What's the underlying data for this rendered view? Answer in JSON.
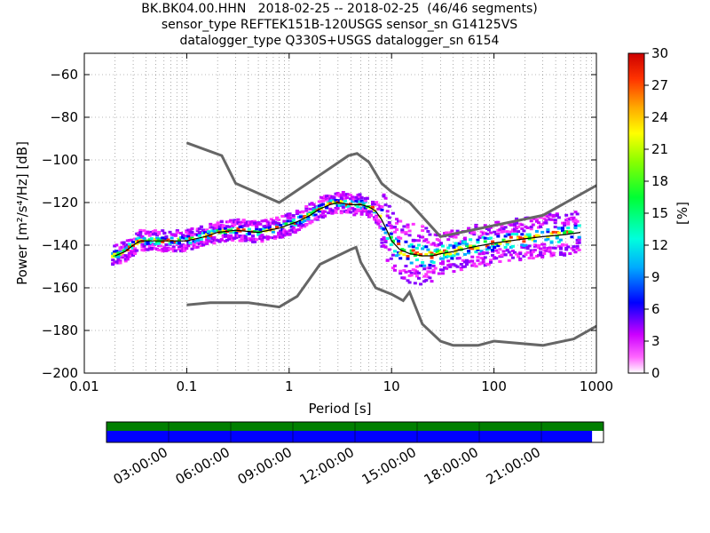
{
  "title": {
    "line1": "BK.BK04.00.HHN   2018-02-25 -- 2018-02-25  (46/46 segments)",
    "line2": "sensor_type REFTEK151B-120USGS sensor_sn G14125VS",
    "line3": "datalogger_type Q330S+USGS datalogger_sn 6154"
  },
  "colorbar": {
    "label": "[%]",
    "ticks": [
      "0",
      "3",
      "6",
      "9",
      "12",
      "15",
      "18",
      "21",
      "24",
      "27",
      "30"
    ],
    "min": 0,
    "max": 30
  },
  "timeline": {
    "ticks": [
      "03:00:00",
      "06:00:00",
      "09:00:00",
      "12:00:00",
      "15:00:00",
      "18:00:00",
      "21:00:00"
    ],
    "coverage_top_color": "#007f00",
    "coverage_bottom_color": "#0000ff",
    "coverage_fraction": 0.977
  },
  "chart_data": {
    "type": "heatmap",
    "xlabel": "Period [s]",
    "ylabel": "Power [m²/s⁴/Hz] [dB]",
    "xscale": "log",
    "xlim": [
      0.01,
      1000
    ],
    "ylim": [
      -200,
      -50
    ],
    "xticks": [
      "0.01",
      "0.1",
      "1",
      "10",
      "100",
      "1000"
    ],
    "xtick_values": [
      0.01,
      0.1,
      1,
      10,
      100,
      1000
    ],
    "yticks": [
      "−60",
      "−80",
      "−100",
      "−120",
      "−140",
      "−160",
      "−180",
      "−200"
    ],
    "ytick_values": [
      -60,
      -80,
      -100,
      -120,
      -140,
      -160,
      -180,
      -200
    ],
    "grid": true,
    "series": [
      {
        "x": [
          0.1,
          0.22,
          0.3,
          0.8,
          3.8,
          4.6,
          6,
          8,
          10,
          15,
          30,
          300,
          1000
        ],
        "y": [
          -92,
          -98,
          -111,
          -120,
          -98,
          -97,
          -101,
          -111,
          -115,
          -120,
          -136,
          -126,
          -112
        ]
      },
      {
        "x": [
          0.1,
          0.17,
          0.4,
          0.8,
          1.2,
          2,
          4,
          4.5,
          5,
          7,
          10,
          13,
          15,
          20,
          30,
          40,
          70,
          100,
          300,
          600,
          1000
        ],
        "y": [
          -168,
          -167,
          -167,
          -169,
          -164,
          -149,
          -142,
          -141,
          -148,
          -160,
          -163,
          -166,
          -162,
          -177,
          -185,
          -187,
          -187,
          -185,
          -187,
          -184,
          -178
        ]
      },
      {
        "x": [
          0.02,
          0.025,
          0.03,
          0.035,
          0.05,
          0.08,
          0.1,
          0.15,
          0.2,
          0.3,
          0.5,
          0.8,
          1.2,
          1.6,
          2,
          2.5,
          3,
          4,
          5,
          6,
          7,
          8,
          9,
          10,
          12,
          15,
          20,
          25,
          30,
          40,
          60,
          100,
          200,
          300,
          500,
          700
        ],
        "y": [
          -145,
          -143,
          -140,
          -138,
          -138,
          -138,
          -138,
          -136,
          -134,
          -133,
          -134,
          -132,
          -129,
          -126,
          -123,
          -121,
          -120,
          -121,
          -121,
          -122,
          -124,
          -128,
          -133,
          -138,
          -142,
          -144,
          -145,
          -145,
          -144,
          -143,
          -141,
          -139,
          -137,
          -136,
          -135,
          -134
        ]
      }
    ]
  }
}
